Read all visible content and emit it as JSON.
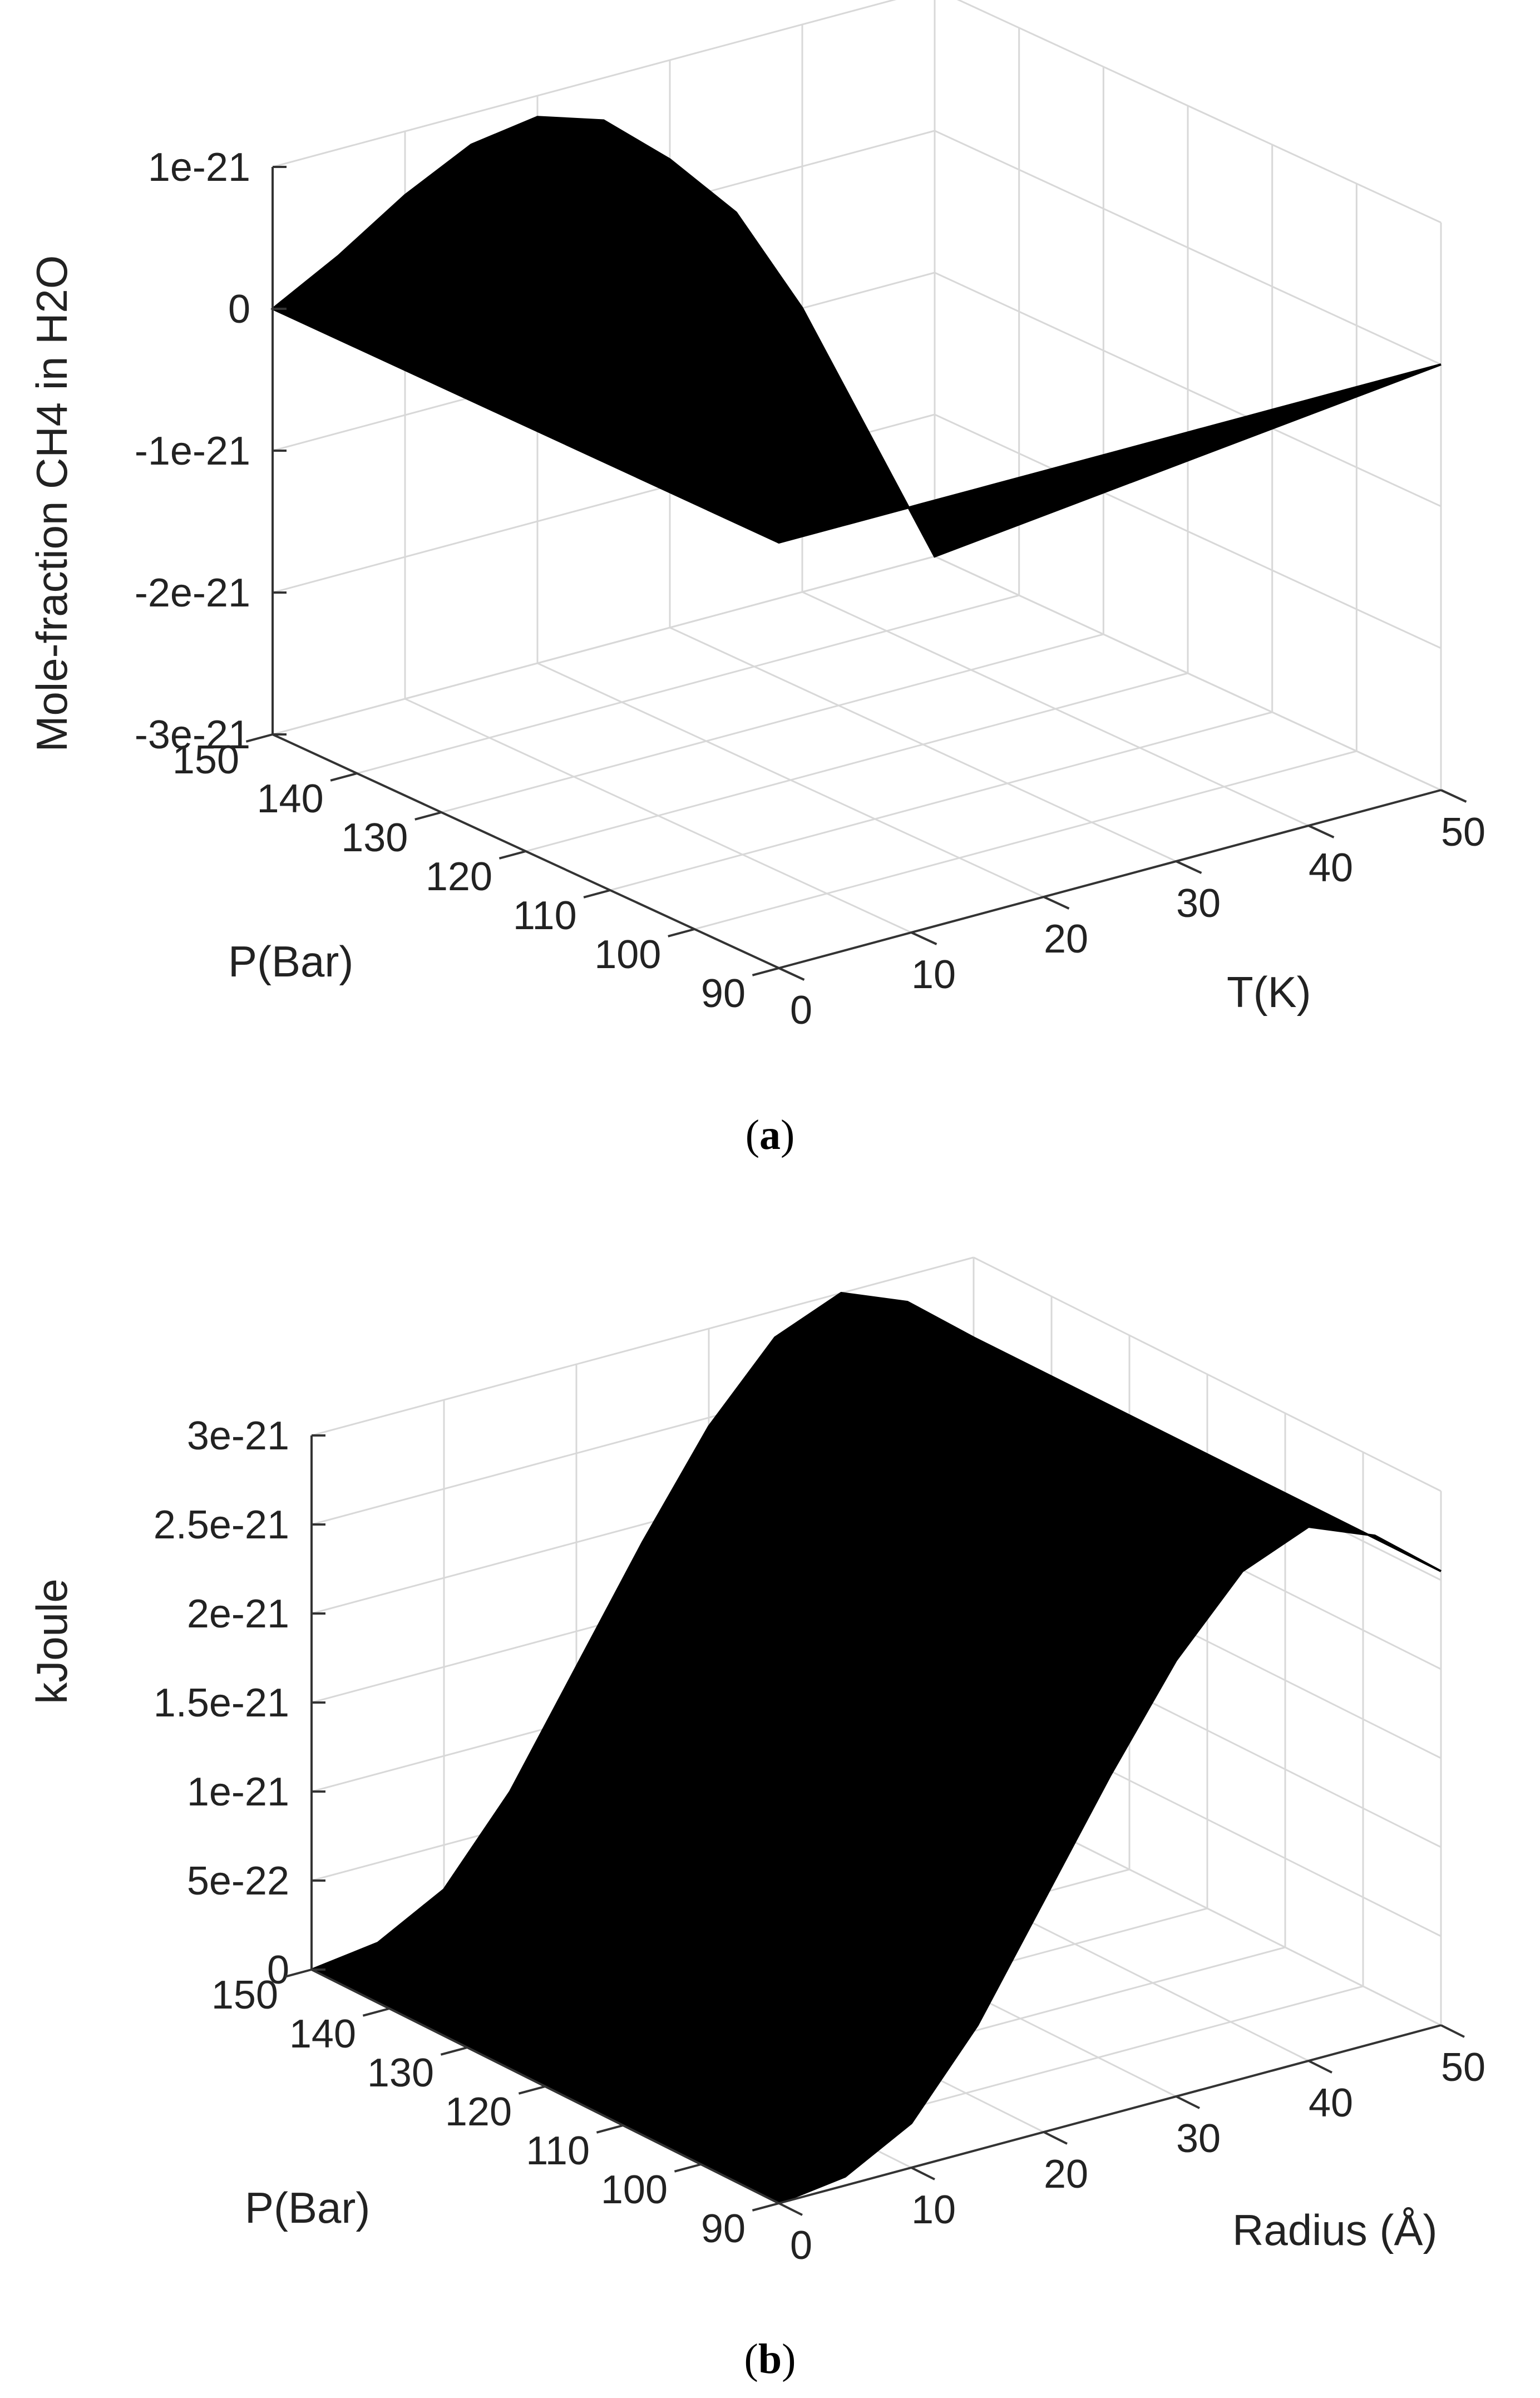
{
  "chart_data": [
    {
      "type": "surface",
      "caption_letter": "a",
      "zlabel": "Mole-fraction CH4 in H2O",
      "ylabel": "P(Bar)",
      "xlabel": "T(K)",
      "x_ticks": [
        "0",
        "10",
        "20",
        "30",
        "40",
        "50"
      ],
      "y_ticks": [
        "90",
        "100",
        "110",
        "120",
        "130",
        "140",
        "150"
      ],
      "z_ticks": [
        "-3e-21",
        "-2e-21",
        "-1e-21",
        "0",
        "1e-21"
      ],
      "xlim": [
        0,
        50
      ],
      "ylim": [
        90,
        150
      ],
      "zlim": [
        -3e-21,
        1e-21
      ],
      "grid": true,
      "surface_color": "#000000",
      "surface_profile": {
        "description_x": "T(K)",
        "x": [
          0,
          5,
          10,
          15,
          20,
          25,
          30,
          35,
          40,
          45,
          50
        ],
        "z_at_P150": [
          0,
          2.5e-22,
          5.5e-22,
          7.8e-22,
          8.5e-22,
          7e-22,
          3e-22,
          -2e-22,
          -1e-21,
          -2e-21,
          -3e-21
        ],
        "z_at_P90": [
          0,
          0,
          0,
          0,
          0,
          0,
          0,
          0,
          0,
          0,
          0
        ]
      }
    },
    {
      "type": "surface",
      "caption_letter": "b",
      "zlabel": "kJoule",
      "ylabel": "P(Bar)",
      "xlabel": "Radius (Å)",
      "x_ticks": [
        "0",
        "10",
        "20",
        "30",
        "40",
        "50"
      ],
      "y_ticks": [
        "90",
        "100",
        "110",
        "120",
        "130",
        "140",
        "150"
      ],
      "z_ticks": [
        "0",
        "5e-22",
        "1e-21",
        "1.5e-21",
        "2e-21",
        "2.5e-21",
        "3e-21"
      ],
      "xlim": [
        0,
        50
      ],
      "ylim": [
        90,
        150
      ],
      "zlim": [
        0,
        3e-21
      ],
      "grid": true,
      "surface_color": "#000000",
      "surface_profile": {
        "description_x": "Radius (Å)",
        "x": [
          0,
          5,
          10,
          15,
          20,
          25,
          30,
          35,
          40,
          45,
          50
        ],
        "z": [
          0,
          5e-23,
          2.5e-22,
          7e-22,
          1.3e-21,
          1.9e-21,
          2.45e-21,
          2.85e-21,
          3e-21,
          2.85e-21,
          2.55e-21
        ]
      }
    }
  ]
}
